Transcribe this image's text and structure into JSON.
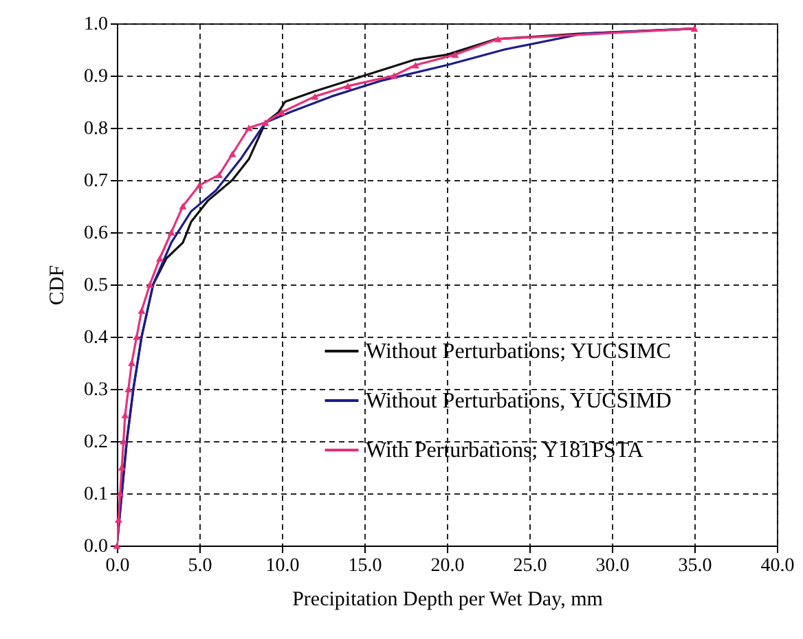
{
  "chart_data": {
    "type": "line",
    "xlabel": "Precipitation Depth per Wet Day, mm",
    "ylabel": "CDF",
    "xlim": [
      0,
      40
    ],
    "ylim": [
      0,
      1
    ],
    "xticks": [
      {
        "value": 0,
        "label": "0.0"
      },
      {
        "value": 5,
        "label": "5.0"
      },
      {
        "value": 10,
        "label": "10.0"
      },
      {
        "value": 15,
        "label": "15.0"
      },
      {
        "value": 20,
        "label": "20.0"
      },
      {
        "value": 25,
        "label": "25.0"
      },
      {
        "value": 30,
        "label": "30.0"
      },
      {
        "value": 35,
        "label": "35.0"
      },
      {
        "value": 40,
        "label": "40.0"
      }
    ],
    "yticks": [
      {
        "value": 0,
        "label": "0.0"
      },
      0.1,
      0.2,
      0.3,
      0.4,
      0.5,
      0.6,
      0.7,
      0.8,
      0.9,
      {
        "value": 1,
        "label": "1.0"
      }
    ],
    "grid": true,
    "legend": "right",
    "line_style": "solid",
    "series": [
      {
        "name": "Without Perturbations; YUCSIMC",
        "color": "#111111",
        "x": [
          0,
          0.3,
          0.6,
          1.0,
          1.5,
          2.2,
          3.0,
          4.0,
          4.5,
          5.5,
          7.0,
          8.0,
          9.0,
          9.8,
          10.2,
          12,
          15,
          18,
          20,
          23,
          28,
          35
        ],
        "values": [
          0,
          0.1,
          0.2,
          0.3,
          0.4,
          0.5,
          0.55,
          0.58,
          0.62,
          0.66,
          0.7,
          0.74,
          0.81,
          0.83,
          0.85,
          0.87,
          0.9,
          0.93,
          0.94,
          0.97,
          0.98,
          0.99
        ]
      },
      {
        "name": "Without Perturbations, YUCSIMD",
        "color": "#1c1c8c",
        "x": [
          0,
          0.3,
          0.6,
          1.0,
          1.5,
          2.2,
          3.3,
          4.5,
          6,
          7.5,
          9,
          10.5,
          13,
          16,
          20,
          23.5,
          28.2,
          35
        ],
        "values": [
          0,
          0.1,
          0.2,
          0.3,
          0.4,
          0.5,
          0.58,
          0.64,
          0.68,
          0.74,
          0.81,
          0.83,
          0.86,
          0.89,
          0.92,
          0.95,
          0.98,
          0.99
        ]
      },
      {
        "name": "With Perturbations; Y181PSTA",
        "color": "#e8307a",
        "marker": "triangle",
        "x": [
          0,
          0.1,
          0.2,
          0.3,
          0.4,
          0.5,
          0.7,
          0.9,
          1.2,
          1.5,
          2.0,
          2.6,
          3.3,
          4.0,
          5.0,
          6.2,
          7.0,
          8.0,
          9.0,
          10.0,
          12.0,
          14.0,
          16.8,
          18.1,
          20.5,
          23.1,
          35
        ],
        "values": [
          0,
          0.05,
          0.1,
          0.15,
          0.2,
          0.25,
          0.3,
          0.35,
          0.4,
          0.45,
          0.5,
          0.55,
          0.6,
          0.65,
          0.69,
          0.71,
          0.75,
          0.8,
          0.81,
          0.83,
          0.86,
          0.88,
          0.9,
          0.92,
          0.94,
          0.97,
          0.99
        ]
      }
    ]
  }
}
